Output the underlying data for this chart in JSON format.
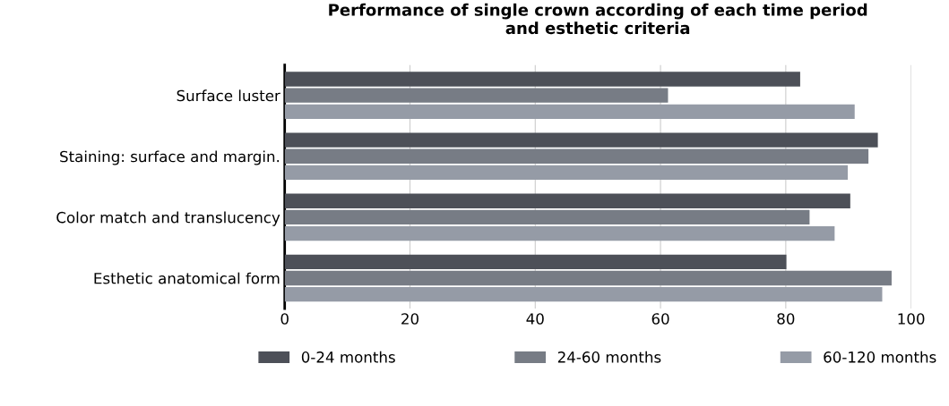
{
  "chart_data": {
    "type": "bar",
    "orientation": "horizontal",
    "title": "Performance of single crown according of each time period\nand esthetic criteria",
    "categories": [
      "Surface luster",
      "Staining: surface and margin.",
      "Color match and translucency",
      "Esthetic anatomical form"
    ],
    "series": [
      {
        "name": "0-24 months",
        "color": "#4d5058",
        "values": [
          82.3,
          94.7,
          90.3,
          80.1
        ]
      },
      {
        "name": "24-60 months",
        "color": "#777c85",
        "values": [
          61.2,
          93.2,
          83.8,
          96.9
        ]
      },
      {
        "name": "60-120 months",
        "color": "#959ba6",
        "values": [
          91.0,
          89.9,
          87.8,
          95.4
        ]
      }
    ],
    "xlim": [
      0,
      100
    ],
    "xticks": [
      0,
      20,
      40,
      60,
      80,
      100
    ],
    "grid": "x",
    "legend": "bottom"
  }
}
